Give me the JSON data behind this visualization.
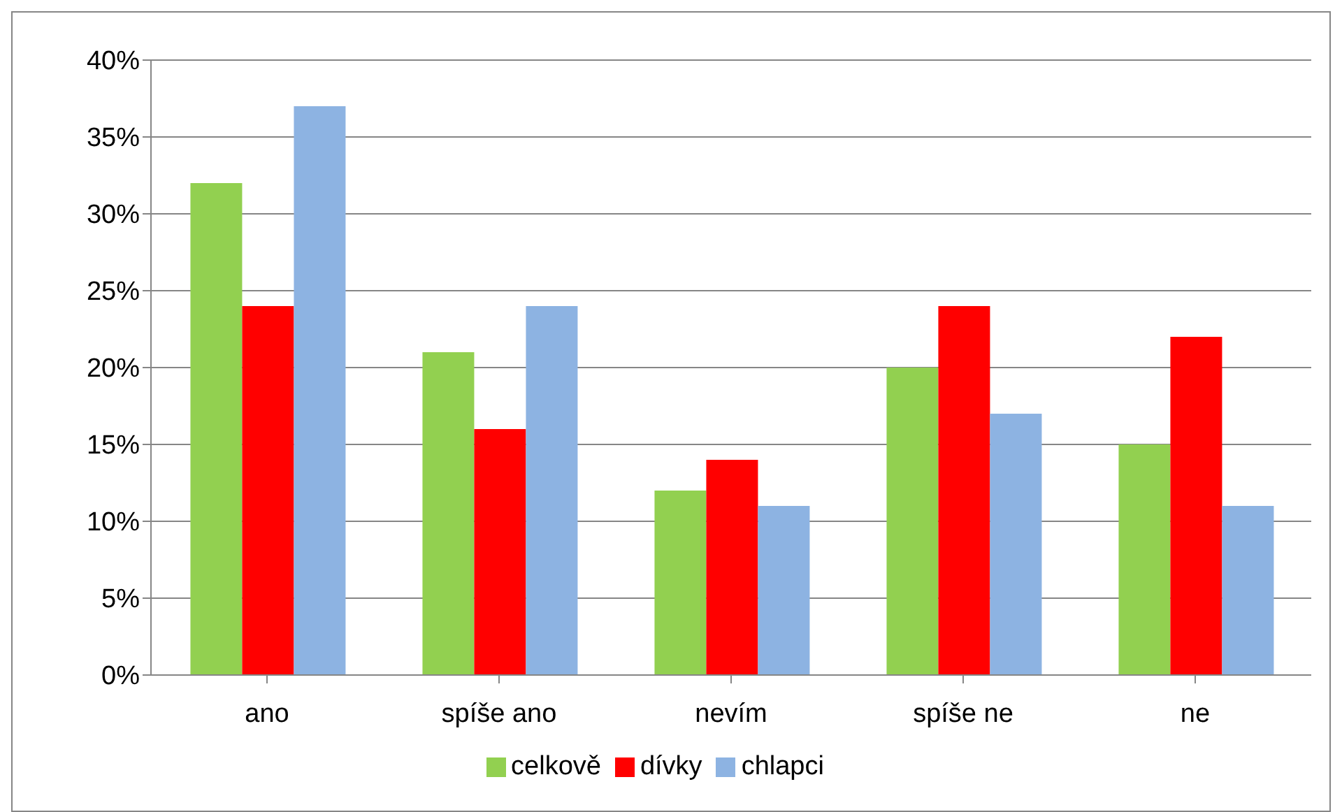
{
  "chart_data": {
    "type": "bar",
    "categories": [
      "ano",
      "spíše ano",
      "nevím",
      "spíše ne",
      "ne"
    ],
    "series": [
      {
        "name": "celkově",
        "color": "#92d050",
        "values": [
          32,
          21,
          12,
          20,
          15
        ]
      },
      {
        "name": "dívky",
        "color": "#ff0000",
        "values": [
          24,
          16,
          14,
          24,
          22
        ]
      },
      {
        "name": "chlapci",
        "color": "#8db3e2",
        "values": [
          37,
          24,
          11,
          17,
          11
        ]
      }
    ],
    "ylim": [
      0,
      40
    ],
    "yticks": [
      {
        "value": 0,
        "label": "0%"
      },
      {
        "value": 5,
        "label": "5%"
      },
      {
        "value": 10,
        "label": "10%"
      },
      {
        "value": 15,
        "label": "15%"
      },
      {
        "value": 20,
        "label": "20%"
      },
      {
        "value": 25,
        "label": "25%"
      },
      {
        "value": 30,
        "label": "30%"
      },
      {
        "value": 35,
        "label": "35%"
      },
      {
        "value": 40,
        "label": "40%"
      }
    ],
    "grid": "y",
    "legend": "bottom"
  }
}
